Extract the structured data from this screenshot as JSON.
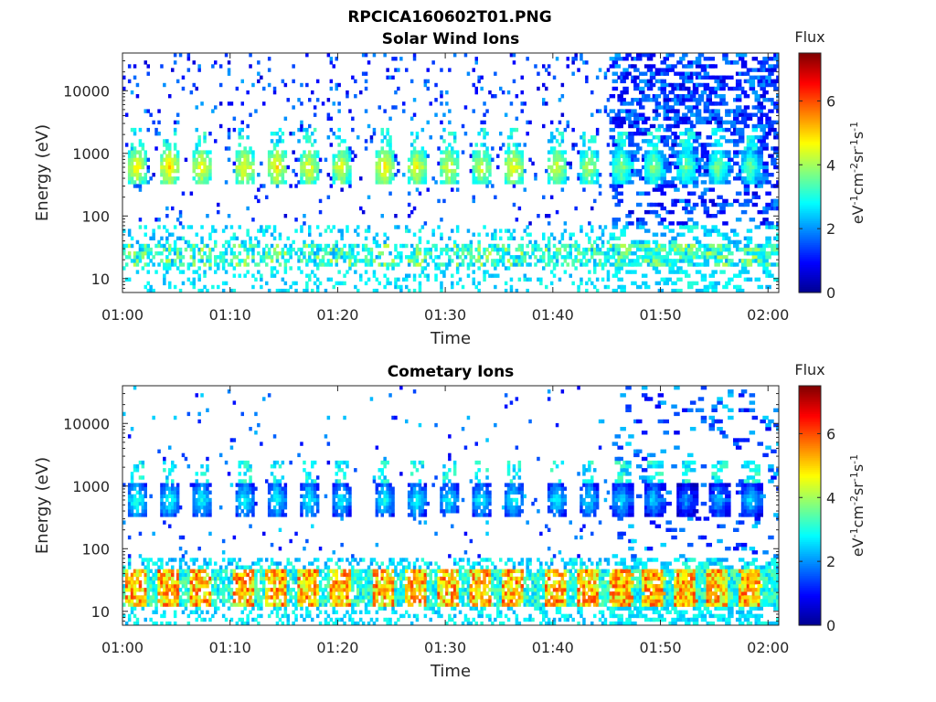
{
  "figure": {
    "title": "RPCICA160602T01.PNG",
    "background": "#ffffff"
  },
  "colormap": {
    "name": "jet",
    "stops": [
      "#00008f",
      "#0000ff",
      "#0080ff",
      "#00ffff",
      "#80ff80",
      "#ffff00",
      "#ff8000",
      "#ff0000",
      "#800000"
    ]
  },
  "chart_data": [
    {
      "type": "heatmap",
      "title": "Solar Wind Ions",
      "xlabel": "Time",
      "ylabel": "Energy (eV)",
      "x_unit": "UT time (hh:mm)",
      "xlim": [
        "01:00",
        "02:01"
      ],
      "xticks": [
        "01:00",
        "01:10",
        "01:20",
        "01:30",
        "01:40",
        "01:50",
        "02:00"
      ],
      "y_scale": "log",
      "ylim": [
        6,
        40000
      ],
      "yticks": [
        10,
        100,
        1000,
        10000
      ],
      "ytick_labels": [
        "10",
        "100",
        "1000",
        "10000"
      ],
      "colorbar": {
        "label": "Flux",
        "unit_lines": [
          "eV",
          "-1",
          "cm",
          "-2",
          "sr",
          "-1",
          "s",
          "-1"
        ],
        "range": [
          0,
          7.5
        ],
        "ticks": [
          0,
          2,
          4,
          6
        ]
      },
      "ion_peak_energy_eV": 600,
      "low_energy_band_eV": [
        15,
        35
      ],
      "sweep_period_min": 3.2,
      "bursts_start_time": "01:02",
      "bursts": [
        {
          "t": "01:02",
          "flux_peak": 4.8
        },
        {
          "t": "01:05",
          "flux_peak": 5.0
        },
        {
          "t": "01:08",
          "flux_peak": 4.7
        },
        {
          "t": "01:12",
          "flux_peak": 4.8
        },
        {
          "t": "01:15",
          "flux_peak": 4.9
        },
        {
          "t": "01:18",
          "flux_peak": 4.7
        },
        {
          "t": "01:21",
          "flux_peak": 4.6
        },
        {
          "t": "01:25",
          "flux_peak": 4.9
        },
        {
          "t": "01:28",
          "flux_peak": 4.7
        },
        {
          "t": "01:31",
          "flux_peak": 4.6
        },
        {
          "t": "01:34",
          "flux_peak": 4.5
        },
        {
          "t": "01:37",
          "flux_peak": 4.8
        },
        {
          "t": "01:41",
          "flux_peak": 4.5
        },
        {
          "t": "01:44",
          "flux_peak": 4.3
        },
        {
          "t": "01:47",
          "flux_peak": 4.0
        },
        {
          "t": "01:50",
          "flux_peak": 4.0
        },
        {
          "t": "01:53",
          "flux_peak": 3.8
        },
        {
          "t": "01:56",
          "flux_peak": 3.9
        },
        {
          "t": "01:59",
          "flux_peak": 3.7
        }
      ],
      "low_band_flux_peak": 4.3
    },
    {
      "type": "heatmap",
      "title": "Cometary Ions",
      "xlabel": "Time",
      "ylabel": "Energy (eV)",
      "x_unit": "UT time (hh:mm)",
      "xlim": [
        "01:00",
        "02:01"
      ],
      "xticks": [
        "01:00",
        "01:10",
        "01:20",
        "01:30",
        "01:40",
        "01:50",
        "02:00"
      ],
      "y_scale": "log",
      "ylim": [
        6,
        40000
      ],
      "yticks": [
        10,
        100,
        1000,
        10000
      ],
      "ytick_labels": [
        "10",
        "100",
        "1000",
        "10000"
      ],
      "colorbar": {
        "label": "Flux",
        "unit_lines": [
          "eV",
          "-1",
          "cm",
          "-2",
          "sr",
          "-1",
          "s",
          "-1"
        ],
        "range": [
          0,
          7.5
        ],
        "ticks": [
          0,
          2,
          4,
          6
        ]
      },
      "ion_peak_energy_eV": 600,
      "low_energy_band_eV": [
        12,
        45
      ],
      "sweep_period_min": 3.2,
      "bursts_start_time": "01:02",
      "bursts": [
        {
          "t": "01:02",
          "flux_peak": 3.2
        },
        {
          "t": "01:05",
          "flux_peak": 3.1
        },
        {
          "t": "01:08",
          "flux_peak": 3.0
        },
        {
          "t": "01:12",
          "flux_peak": 3.0
        },
        {
          "t": "01:15",
          "flux_peak": 3.0
        },
        {
          "t": "01:18",
          "flux_peak": 3.0
        },
        {
          "t": "01:21",
          "flux_peak": 2.9
        },
        {
          "t": "01:25",
          "flux_peak": 3.0
        },
        {
          "t": "01:28",
          "flux_peak": 3.0
        },
        {
          "t": "01:31",
          "flux_peak": 2.9
        },
        {
          "t": "01:34",
          "flux_peak": 2.9
        },
        {
          "t": "01:37",
          "flux_peak": 3.0
        },
        {
          "t": "01:41",
          "flux_peak": 2.9
        },
        {
          "t": "01:44",
          "flux_peak": 2.8
        },
        {
          "t": "01:47",
          "flux_peak": 2.7
        },
        {
          "t": "01:50",
          "flux_peak": 2.6
        },
        {
          "t": "01:53",
          "flux_peak": 2.2
        },
        {
          "t": "01:56",
          "flux_peak": 2.5
        },
        {
          "t": "01:59",
          "flux_peak": 2.7
        }
      ],
      "low_band_flux_peak": 6.2
    }
  ]
}
